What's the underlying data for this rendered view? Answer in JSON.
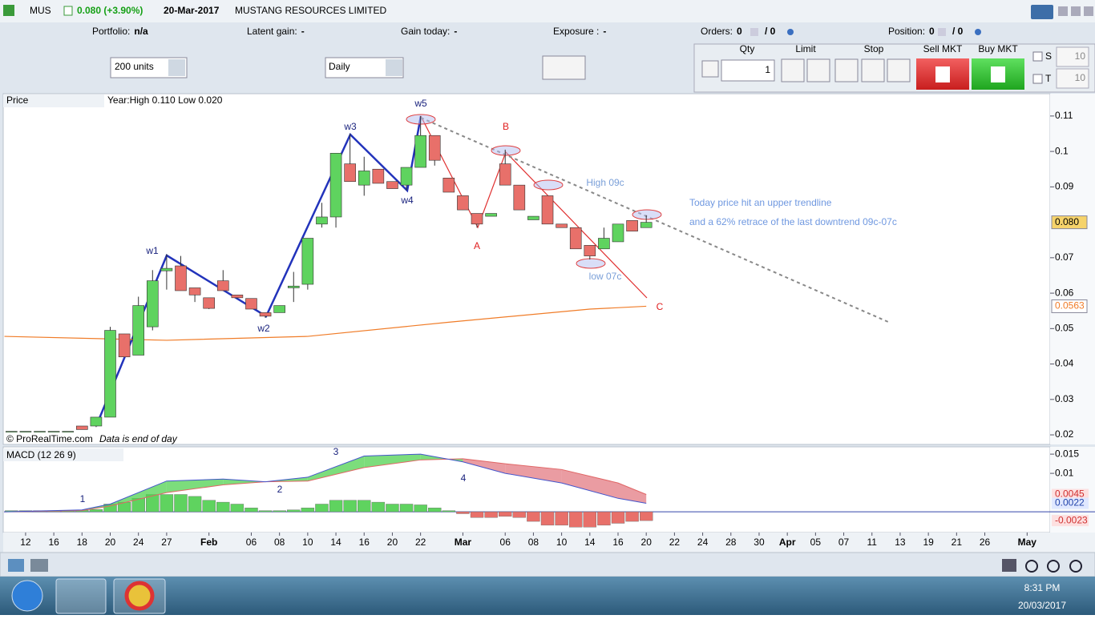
{
  "header": {
    "symbol": "MUS",
    "change": "0.080 (+3.90%)",
    "date": "20-Mar-2017",
    "name": "MUSTANG RESOURCES LIMITED"
  },
  "status_bar": [
    {
      "label": "Portfolio:",
      "value": "n/a"
    },
    {
      "label": "Latent gain:",
      "value": "-"
    },
    {
      "label": "Gain today:",
      "value": "-"
    },
    {
      "label": "Exposure :",
      "value": "-"
    },
    {
      "label": "Orders:",
      "value": 0,
      "extra": "/ 0"
    },
    {
      "label": "Position:",
      "value": 0,
      "extra": "/ 0"
    }
  ],
  "toolbar": {
    "units": "200 units",
    "period": "Daily"
  },
  "order_panel": {
    "qty_label": "Qty",
    "qty": 1,
    "limit": "Limit",
    "stop": "Stop",
    "sell": "Sell MKT",
    "buy": "Buy MKT",
    "s_label": "S",
    "s_value": 10,
    "t_label": "T",
    "t_value": 10
  },
  "chart_data": [
    {
      "type": "candlestick",
      "title": "Price",
      "info": "Year:High 0.110 Low 0.020",
      "copyright": "© ProRealTime.com",
      "note": "Data is end of day",
      "up_color": "#5fd35f",
      "down_color": "#e8706a",
      "x": [
        -1,
        0,
        1,
        2,
        3,
        4,
        5,
        6,
        7,
        8,
        9,
        10,
        11,
        12,
        13,
        14,
        15,
        16,
        17,
        18,
        19,
        20,
        21,
        22,
        23,
        24,
        25,
        26,
        27,
        28,
        29,
        30,
        31,
        32,
        33,
        34,
        35,
        36,
        37,
        38,
        39,
        40,
        41,
        42,
        43,
        44
      ],
      "open": [
        0.021,
        0.021,
        0.021,
        0.021,
        0.021,
        0.0225,
        0.0225,
        0.025,
        0.0485,
        0.0425,
        0.0505,
        0.0663,
        0.0677,
        0.0615,
        0.0587,
        0.0635,
        0.0595,
        0.0585,
        0.0545,
        0.0545,
        0.0615,
        0.0625,
        0.0795,
        0.0815,
        0.0965,
        0.0905,
        0.095,
        0.0915,
        0.0905,
        0.0955,
        0.1045,
        0.0925,
        0.0875,
        0.0825,
        0.0817,
        0.0965,
        0.0905,
        0.0807,
        0.0875,
        0.0795,
        0.0785,
        0.0735,
        0.0725,
        0.0745,
        0.0805,
        0.0785
      ],
      "high": [
        0.021,
        0.021,
        0.021,
        0.021,
        0.021,
        0.0225,
        0.025,
        0.0505,
        0.0485,
        0.059,
        0.0665,
        0.071,
        0.0705,
        0.0615,
        0.0587,
        0.0665,
        0.0595,
        0.0585,
        0.0545,
        0.0565,
        0.066,
        0.0755,
        0.0855,
        0.0995,
        0.105,
        0.0985,
        0.095,
        0.0915,
        0.0955,
        0.11,
        0.1045,
        0.0925,
        0.0875,
        0.0825,
        0.0825,
        0.1005,
        0.0905,
        0.0817,
        0.0875,
        0.0795,
        0.0785,
        0.0735,
        0.0785,
        0.0795,
        0.0805,
        0.082
      ],
      "low": [
        0.021,
        0.021,
        0.021,
        0.021,
        0.021,
        0.0215,
        0.0222,
        0.025,
        0.042,
        0.0425,
        0.0495,
        0.061,
        0.0607,
        0.0575,
        0.0555,
        0.0607,
        0.0585,
        0.0555,
        0.053,
        0.0545,
        0.0575,
        0.061,
        0.0785,
        0.0785,
        0.0915,
        0.0875,
        0.091,
        0.0895,
        0.089,
        0.0955,
        0.096,
        0.0885,
        0.0835,
        0.0785,
        0.0817,
        0.0905,
        0.0835,
        0.0807,
        0.0795,
        0.0785,
        0.0725,
        0.0695,
        0.0725,
        0.0745,
        0.0775,
        0.0785
      ],
      "close": [
        0.021,
        0.021,
        0.021,
        0.021,
        0.021,
        0.0215,
        0.025,
        0.0495,
        0.042,
        0.0565,
        0.0635,
        0.067,
        0.0607,
        0.0595,
        0.0557,
        0.0607,
        0.0587,
        0.0555,
        0.0535,
        0.0565,
        0.062,
        0.0755,
        0.0815,
        0.0995,
        0.0915,
        0.0945,
        0.091,
        0.0895,
        0.0955,
        0.1045,
        0.0975,
        0.0885,
        0.0835,
        0.0795,
        0.0825,
        0.0905,
        0.0835,
        0.0817,
        0.0795,
        0.0785,
        0.0725,
        0.0705,
        0.0755,
        0.0795,
        0.0775,
        0.08
      ],
      "moving_average": {
        "color": "#f07c28",
        "x": [
          -1.5,
          10,
          20,
          30,
          40,
          44
        ],
        "values": [
          0.0478,
          0.0467,
          0.0478,
          0.0518,
          0.0555,
          0.0563
        ]
      },
      "last_price": {
        "value": 0.08,
        "label": "0.080"
      },
      "ma_last": {
        "value": 0.0563,
        "label": "0.0563"
      },
      "xlim": [
        -1.53,
        72.63
      ],
      "ylim": [
        0.0173,
        0.1163
      ],
      "yticks": [
        0.11,
        0.1,
        0.09,
        0.07,
        0.06,
        0.05,
        0.04,
        0.03,
        0.02
      ],
      "xticks": [
        {
          "value": 0,
          "label": "12"
        },
        {
          "value": 2,
          "label": "16"
        },
        {
          "value": 4,
          "label": "18"
        },
        {
          "value": 6,
          "label": "20"
        },
        {
          "value": 8,
          "label": "24"
        },
        {
          "value": 10,
          "label": "27"
        },
        {
          "value": 13,
          "label": "Feb"
        },
        {
          "value": 16,
          "label": "06"
        },
        {
          "value": 18,
          "label": "08"
        },
        {
          "value": 20,
          "label": "10"
        },
        {
          "value": 22,
          "label": "14"
        },
        {
          "value": 24,
          "label": "16"
        },
        {
          "value": 26,
          "label": "20"
        },
        {
          "value": 28,
          "label": "22"
        },
        {
          "value": 31,
          "label": "Mar"
        },
        {
          "value": 34,
          "label": "06"
        },
        {
          "value": 36,
          "label": "08"
        },
        {
          "value": 38,
          "label": "10"
        },
        {
          "value": 40,
          "label": "14"
        },
        {
          "value": 42,
          "label": "16"
        },
        {
          "value": 44,
          "label": "20"
        },
        {
          "value": 46,
          "label": "22"
        },
        {
          "value": 48,
          "label": "24"
        },
        {
          "value": 50,
          "label": "28"
        },
        {
          "value": 52,
          "label": "30"
        },
        {
          "value": 54,
          "label": "Apr"
        },
        {
          "value": 56,
          "label": "05"
        },
        {
          "value": 58,
          "label": "07"
        },
        {
          "value": 60,
          "label": "11"
        },
        {
          "value": 62,
          "label": "13"
        },
        {
          "value": 64,
          "label": "19"
        },
        {
          "value": 66,
          "label": "21"
        },
        {
          "value": 68,
          "label": "26"
        },
        {
          "value": 71,
          "label": "May"
        }
      ],
      "annotations": [
        "w1",
        "w2",
        "w3",
        "w4",
        "w5",
        "A",
        "B",
        "C",
        "High 09c",
        "low 07c",
        "Today price hit an upper trendline",
        "and a 62% retrace of the last downtrend 09c-07c"
      ]
    },
    {
      "type": "macd",
      "title": "MACD (12 26 9)",
      "x": [
        -1,
        0,
        1,
        2,
        3,
        4,
        5,
        6,
        7,
        8,
        9,
        10,
        11,
        12,
        13,
        14,
        15,
        16,
        17,
        18,
        19,
        20,
        21,
        22,
        23,
        24,
        25,
        26,
        27,
        28,
        29,
        30,
        31,
        32,
        33,
        34,
        35,
        36,
        37,
        38,
        39,
        40,
        41,
        42,
        43,
        44
      ],
      "histogram": [
        0.0003,
        0.0003,
        0.0003,
        0.0003,
        0.0003,
        0.0004,
        0.0006,
        0.002,
        0.0025,
        0.0035,
        0.0045,
        0.0045,
        0.0045,
        0.004,
        0.003,
        0.0025,
        0.002,
        0.001,
        0.0003,
        0.0003,
        0.0005,
        0.001,
        0.002,
        0.003,
        0.003,
        0.003,
        0.0025,
        0.002,
        0.002,
        0.0018,
        0.001,
        0.0003,
        -0.0005,
        -0.0015,
        -0.0015,
        -0.0012,
        -0.0015,
        -0.0025,
        -0.0035,
        -0.0035,
        -0.004,
        -0.004,
        -0.0035,
        -0.003,
        -0.0025,
        -0.0023
      ],
      "line_x": [
        -1.5,
        4,
        6,
        10,
        14,
        17,
        20,
        24,
        28,
        31,
        34,
        38,
        42,
        44
      ],
      "macd": [
        0,
        0.0005,
        0.002,
        0.008,
        0.0085,
        0.0078,
        0.009,
        0.0145,
        0.015,
        0.013,
        0.01,
        0.0075,
        0.0035,
        0.0022
      ],
      "signal": [
        0,
        0.0003,
        0.0015,
        0.005,
        0.007,
        0.0078,
        0.008,
        0.0115,
        0.0135,
        0.0138,
        0.0125,
        0.011,
        0.0075,
        0.0045
      ],
      "macd_color": "#4455cc",
      "signal_color": "#e06666",
      "last_values": [
        {
          "value": 0.0045,
          "label": "0.0045"
        },
        {
          "value": 0.0022,
          "label": "0.0022"
        },
        {
          "value": -0.0023,
          "label": "-0.0023"
        }
      ],
      "ylim": [
        -0.0054,
        0.0169
      ],
      "yticks": [
        0.015,
        0.01
      ],
      "annotations": [
        "1",
        "2",
        "3",
        "4"
      ]
    }
  ],
  "taskbar": {
    "time": "8:31 PM",
    "date": "20/03/2017"
  }
}
